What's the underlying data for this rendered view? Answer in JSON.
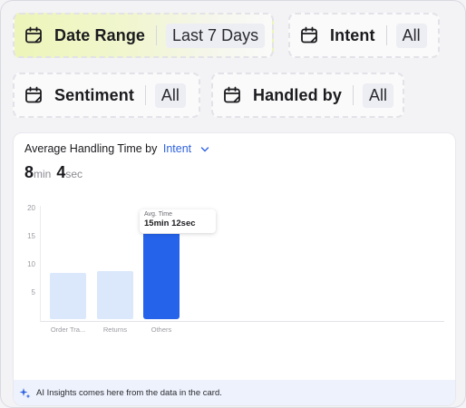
{
  "filters": [
    {
      "label": "Date Range",
      "value": "Last 7 Days",
      "active": true
    },
    {
      "label": "Intent",
      "value": "All",
      "active": false
    },
    {
      "label": "Sentiment",
      "value": "All",
      "active": false
    },
    {
      "label": "Handled by",
      "value": "All",
      "active": false
    }
  ],
  "card": {
    "title": "Average Handling Time by",
    "group_by": "Intent",
    "metric": {
      "minutes": "8",
      "min_unit": "min",
      "seconds": "4",
      "sec_unit": "sec"
    },
    "tooltip": {
      "label": "Avg. Time",
      "value": "15min 12sec"
    },
    "insights": "AI Insights comes here from the data in the card."
  },
  "colors": {
    "bar_highlight": "#2563eb",
    "bar_muted": "#dbe7fb",
    "accent_link": "#2f63e0"
  },
  "chart_data": {
    "type": "bar",
    "categories": [
      "Order Tra...",
      "Returns",
      "Others"
    ],
    "values": [
      8.2,
      8.5,
      15.2
    ],
    "highlighted": "Others",
    "yticks": [
      "20",
      "15",
      "10",
      "5"
    ],
    "ylim": [
      0,
      20
    ]
  }
}
